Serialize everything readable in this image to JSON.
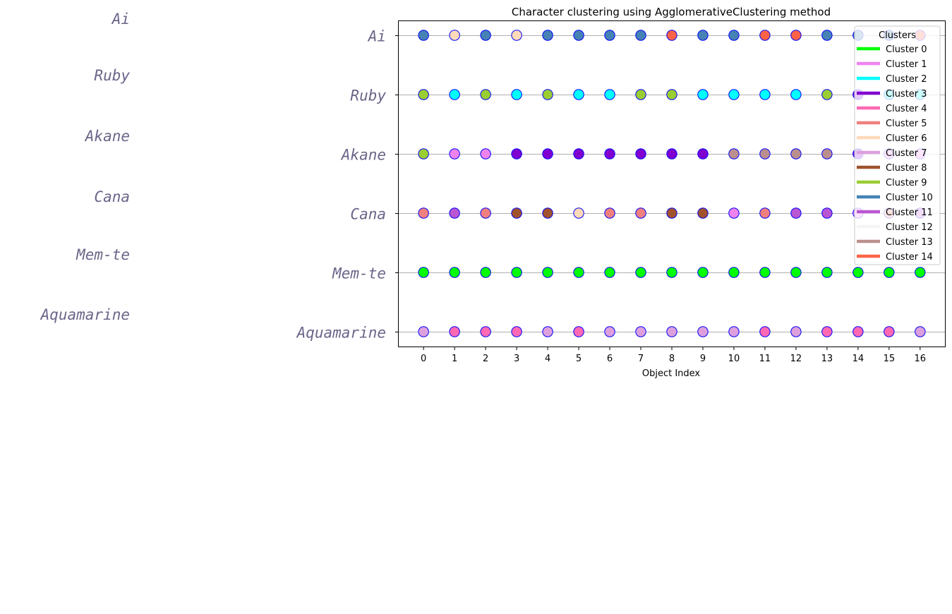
{
  "chart_data": {
    "type": "scatter",
    "title": "Character clustering using AgglomerativeClustering method",
    "xlabel": "Object Index",
    "ylabel": "",
    "x": [
      0,
      1,
      2,
      3,
      4,
      5,
      6,
      7,
      8,
      9,
      10,
      11,
      12,
      13,
      14,
      15,
      16
    ],
    "xlim": [
      -0.8,
      16.8
    ],
    "categories": [
      "Ai",
      "Ruby",
      "Akane",
      "Cana",
      "Mem-te",
      "Aquamarine"
    ],
    "side_labels": [
      "Ai",
      "Ruby",
      "Akane",
      "Cana",
      "Mem-te",
      "Aquamarine"
    ],
    "grid": "horizontal",
    "legend": {
      "title": "Clusters",
      "placement": "top-right",
      "entries": [
        {
          "label": "Cluster 0",
          "color": "#00ff00"
        },
        {
          "label": "Cluster 1",
          "color": "#ee82ee"
        },
        {
          "label": "Cluster 2",
          "color": "#00ffff"
        },
        {
          "label": "Cluster 3",
          "color": "#8000d0"
        },
        {
          "label": "Cluster 4",
          "color": "#ff69b4"
        },
        {
          "label": "Cluster 5",
          "color": "#f08080"
        },
        {
          "label": "Cluster 6",
          "color": "#ffdab9"
        },
        {
          "label": "Cluster 7",
          "color": "#dda0dd"
        },
        {
          "label": "Cluster 8",
          "color": "#a0522d"
        },
        {
          "label": "Cluster 9",
          "color": "#9acd32"
        },
        {
          "label": "Cluster 10",
          "color": "#4682b4"
        },
        {
          "label": "Cluster 11",
          "color": "#ba55d3"
        },
        {
          "label": "Cluster 12",
          "color": "#f5f5f5"
        },
        {
          "label": "Cluster 13",
          "color": "#bc8f8f"
        },
        {
          "label": "Cluster 14",
          "color": "#ff6347"
        }
      ]
    },
    "marker_edge_color": "#0000ff",
    "series": [
      {
        "row": "Ai",
        "clusters": [
          10,
          6,
          10,
          6,
          10,
          10,
          10,
          10,
          14,
          10,
          10,
          14,
          14,
          10,
          10,
          10,
          14
        ]
      },
      {
        "row": "Ruby",
        "clusters": [
          9,
          2,
          9,
          2,
          9,
          2,
          2,
          9,
          9,
          2,
          2,
          2,
          2,
          9,
          3,
          2,
          2
        ]
      },
      {
        "row": "Akane",
        "clusters": [
          9,
          1,
          1,
          3,
          3,
          3,
          3,
          3,
          3,
          3,
          13,
          13,
          13,
          13,
          3,
          1,
          1
        ]
      },
      {
        "row": "Cana",
        "clusters": [
          5,
          11,
          5,
          8,
          8,
          6,
          5,
          5,
          8,
          8,
          1,
          5,
          11,
          11,
          1,
          5,
          11
        ]
      },
      {
        "row": "Mem-te",
        "clusters": [
          0,
          0,
          0,
          0,
          0,
          0,
          0,
          0,
          0,
          0,
          0,
          0,
          0,
          0,
          0,
          0,
          0
        ]
      },
      {
        "row": "Aquamarine",
        "clusters": [
          7,
          4,
          4,
          4,
          7,
          4,
          7,
          7,
          7,
          7,
          7,
          4,
          7,
          4,
          4,
          4,
          7
        ]
      }
    ]
  }
}
